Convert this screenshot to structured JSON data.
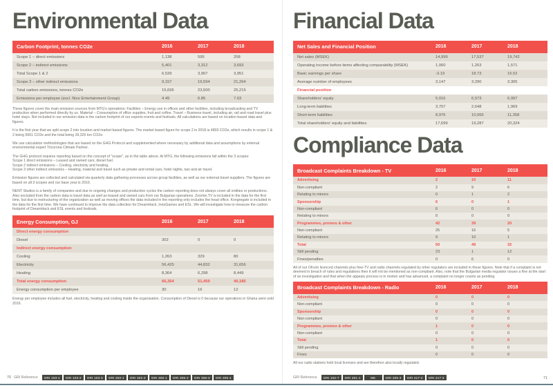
{
  "colors": {
    "accent_red": "#f2504b",
    "heading": "#585c53",
    "row_dark": "#e2ddd4",
    "row_light": "#edebe4",
    "body_text": "#6f6d68",
    "badge_bg": "#45453f",
    "bottom_rule": "#68808a"
  },
  "left": {
    "title": "Environmental Data",
    "page_number": "70",
    "gri_label": "GRI Reference",
    "badges": [
      "GRI 103-1",
      "GRI 103-2",
      "GRI 103-3",
      "GRI 302-1",
      "GRI 302-3",
      "GRI 305-1",
      "GRI 305-2",
      "GRI 305-3",
      "GRI 305-4"
    ],
    "carbon": {
      "title": "Carbon Footprint, tonnes CO2e",
      "columns": [
        "2016",
        "2017",
        "2018"
      ],
      "rows": [
        {
          "label": "Scope 1 – direct emissions",
          "values": [
            "1,138",
            "595",
            "258"
          ],
          "style": "plain"
        },
        {
          "label": "Scope 2 – indirect emissions",
          "values": [
            "5,401",
            "3,312",
            "3,693"
          ],
          "style": "plain"
        },
        {
          "label": "Total Scope 1 & 2",
          "values": [
            "6,539",
            "3,907",
            "3,951"
          ],
          "style": "plain"
        },
        {
          "label": "Scope 3 – other indirect emissions",
          "values": [
            "9,157",
            "19,594",
            "21,264"
          ],
          "style": "plain"
        },
        {
          "label": "Total carbon emissions, tonnes CO2e",
          "values": [
            "15,695",
            "23,500",
            "25,215"
          ],
          "style": "plain"
        },
        {
          "label": "Emissions per employee (excl. Nice Entertainment Group)",
          "values": [
            "4.49",
            "6.85",
            "7.63"
          ],
          "style": "plain"
        }
      ]
    },
    "paragraphs": [
      "These figures cover the main emission sources from MTG's operations: Facilities – Energy use in offices and other facilities, including broadcasting and TV production when performed directly by us. Material – Consumption of office supplies, fruit and coffee. Travel – Business travel, including air, rail and road travel plus hotel stays. Not included in our emission data is the carbon footprint of our esports events and festivals. All calculations are based on location based data and figures.",
      "It is the first year that we split scope 2 into location and market based figures. The market based figure for scope 2 in 2018 is 4803 CO2e, which results in scope 1 & 2 being 5061 CO2e and the total being 26,325 ton CO2e.",
      "We use calculation methodologies that are based on the GHG Protocol and supplemented where necessary by additional data and assumptions by external environmental expert Tricorona Climate Partner.",
      "The GHG protocol requires reporting based on the concept of \"scope\", as in the table above. At MTG, the following emissions fall within the 3 scopes:\nScope 1 direct emissions – Leased and owned cars, diesel fuel.\nScope 2 indirect emissions – Cooling, electricity and heating.\nScope 3 other indirect emissions – Heating, material and travel such as private and rental cars, hotel nights, taxi and air travel.",
      "Emission figures are collected and calculated via quarterly data gathering processes across group facilities, as well as our external travel suppliers. The figures are based on all 3 scopes and our base year is 2010.",
      "NENT Studios is a family of companies and due to ongoing changes and production cycles the carbon reporting does not always cover all entities or productions. Also excluded from the carbon data is travel data as well as leased and owned cars from our Bulgarian operations. Zoomin.TV is included in the data for the first time, but due to restructuring of the organization as well as moving offices the data included in the reporting only includes the head office. Kongregate is included in the data for the first time. We have continued to improve the data collection for DreamHack, InnoGames and ESL. We will investigate how to measure the carbon footprint of DreamHack and ESL events and festivals."
    ],
    "energy": {
      "title": "Energy Consumption, GJ",
      "columns": [
        "2016",
        "2017",
        "2018"
      ],
      "rows": [
        {
          "label": "Direct energy consumption",
          "values": [
            "",
            "",
            ""
          ],
          "style": "sub"
        },
        {
          "label": "Diesel",
          "values": [
            "302",
            "0",
            "0"
          ],
          "style": "plain"
        },
        {
          "label": "Indirect energy consumption",
          "values": [
            "",
            "",
            ""
          ],
          "style": "sub"
        },
        {
          "label": "Cooling",
          "values": [
            "1,263",
            "329",
            "80"
          ],
          "style": "plain"
        },
        {
          "label": "Electricity",
          "values": [
            "56,425",
            "44,832",
            "31,656"
          ],
          "style": "plain"
        },
        {
          "label": "Heating",
          "values": [
            "8,364",
            "6,298",
            "8,449"
          ],
          "style": "plain"
        },
        {
          "label": "Total energy consumption",
          "values": [
            "66,354",
            "51,459",
            "40,185"
          ],
          "style": "sub"
        },
        {
          "label": "Energy consumption per employee",
          "values": [
            "30",
            "16",
            "12"
          ],
          "style": "plain"
        }
      ]
    },
    "energy_note": "Energy per employee includes all fuel, electricity, heating and cooling inside the organisation.  Consumption of Diesel is 0 because our operations in Ghana were sold 2016."
  },
  "right": {
    "financial_title": "Financial Data",
    "compliance_title": "Compliance Data",
    "page_number": "71",
    "gri_label": "GRI Reference",
    "badges": [
      "GRI 102-7",
      "GRI 201-1",
      "M5",
      "GRI 205-3",
      "GRI 417-2",
      "GRI 417-3"
    ],
    "financial": {
      "title": "Net Sales and Financial Position",
      "columns": [
        "2016",
        "2017",
        "2018"
      ],
      "rows": [
        {
          "label": "Net sales (MSEK)",
          "values": [
            "14,999",
            "17,537",
            "19,742"
          ],
          "style": "plain"
        },
        {
          "label": "Operating income before items affecting comparability (MSEK)",
          "values": [
            "1,060",
            "1,263",
            "1,571"
          ],
          "style": "plain"
        },
        {
          "label": "Basic earnings per share",
          "values": [
            "-3.19",
            "18.73",
            "15.52"
          ],
          "style": "plain"
        },
        {
          "label": "Average number of employees",
          "values": [
            "3,147",
            "3,290",
            "3,305"
          ],
          "style": "plain"
        },
        {
          "label": "Financial position",
          "values": [
            "",
            "",
            ""
          ],
          "style": "section"
        },
        {
          "label": "Shareholders' equity",
          "values": [
            "5,016",
            "6,573",
            "6,997"
          ],
          "style": "plain"
        },
        {
          "label": "Long-term liabilities",
          "values": [
            "3,707",
            "2,648",
            "1,969"
          ],
          "style": "plain"
        },
        {
          "label": "Short-term liabilities",
          "values": [
            "8,976",
            "10,066",
            "11,358"
          ],
          "style": "plain"
        },
        {
          "label": "Total shareholders' equity and liabilities",
          "values": [
            "17,699",
            "19,287",
            "20,324"
          ],
          "style": "plain"
        }
      ]
    },
    "tv": {
      "title": "Broadcast Complaints Breakdown - TV",
      "columns": [
        "2016",
        "2017",
        "2018"
      ],
      "rows": [
        {
          "label": "Advertising",
          "values": [
            "2",
            "10",
            "11"
          ],
          "style": "sub"
        },
        {
          "label": "Non-compliant",
          "values": [
            "2",
            "9",
            "6"
          ],
          "style": "plain"
        },
        {
          "label": "Relating to minors",
          "values": [
            "0",
            "1",
            "2"
          ],
          "style": "plain"
        },
        {
          "label": "Sponsorship",
          "values": [
            "6",
            "0",
            "1"
          ],
          "style": "sub"
        },
        {
          "label": "Non-compliant",
          "values": [
            "6",
            "0",
            "0"
          ],
          "style": "plain"
        },
        {
          "label": "Relating to minors",
          "values": [
            "0",
            "0",
            "0"
          ],
          "style": "plain"
        },
        {
          "label": "Programmes, promos & other",
          "values": [
            "42",
            "39",
            "20"
          ],
          "style": "sub"
        },
        {
          "label": "Non-compliant",
          "values": [
            "25",
            "16",
            "5"
          ],
          "style": "plain"
        },
        {
          "label": "Relating to minors",
          "values": [
            "9",
            "10",
            "1"
          ],
          "style": "plain"
        },
        {
          "label": "Total",
          "values": [
            "50",
            "49",
            "32"
          ],
          "style": "sub"
        },
        {
          "label": "Still pending",
          "values": [
            "23",
            "1",
            "12"
          ],
          "style": "plain"
        },
        {
          "label": "Fines/penalties",
          "values": [
            "0",
            "6",
            "0"
          ],
          "style": "plain"
        }
      ]
    },
    "tv_note": "All of our Ofcom licenced channels plus free-TV and radio channels regulated by other regulators are included in these figures. Note that if a complaint is not deemed in breach of rules and regulations then it will not be mentioned as non-compliant. Also, note that the Bulgarian media regulator issues a fine at the start of an investigation and that when the appeals process is in motion and has advanced, a complaint no longer counts as pending.",
    "radio": {
      "title": "Broadcast Complaints Breakdown - Radio",
      "columns": [
        "2016",
        "2017",
        "2018"
      ],
      "rows": [
        {
          "label": "Advertising",
          "values": [
            "0",
            "0",
            "0"
          ],
          "style": "sub"
        },
        {
          "label": "Non-compliant",
          "values": [
            "0",
            "0",
            "0"
          ],
          "style": "plain"
        },
        {
          "label": "Sponsorship",
          "values": [
            "0",
            "0",
            "0"
          ],
          "style": "sub"
        },
        {
          "label": "Non-compliant",
          "values": [
            "0",
            "0",
            "0"
          ],
          "style": "plain"
        },
        {
          "label": "Programmes, promos & other",
          "values": [
            "1",
            "0",
            "0"
          ],
          "style": "sub"
        },
        {
          "label": "Non-compliant",
          "values": [
            "0",
            "0",
            "0"
          ],
          "style": "plain"
        },
        {
          "label": "Total",
          "values": [
            "1",
            "0",
            "0"
          ],
          "style": "sub"
        },
        {
          "label": "Still pending",
          "values": [
            "0",
            "0",
            "0"
          ],
          "style": "plain"
        },
        {
          "label": "Fines",
          "values": [
            "0",
            "0",
            "0"
          ],
          "style": "plain"
        }
      ]
    },
    "radio_note": "All our radio stations hold local licenses and are therefore also locally regulated."
  }
}
